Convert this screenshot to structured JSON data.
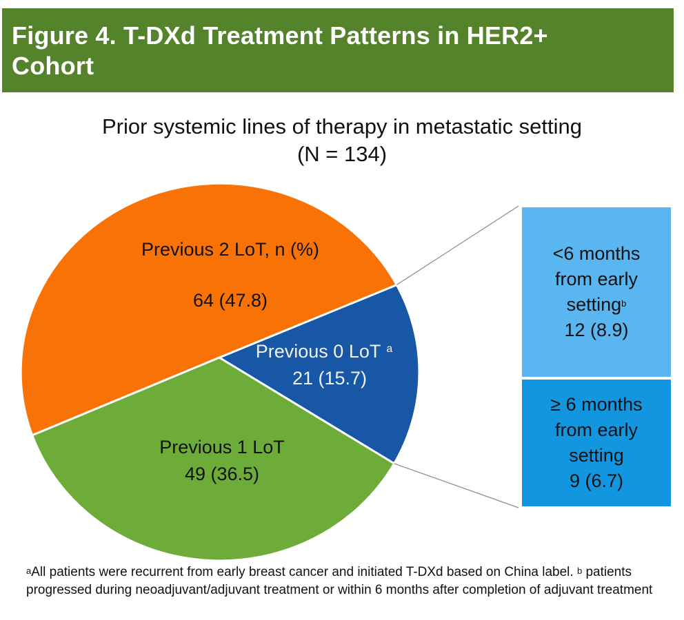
{
  "header": {
    "title_line1": "Figure 4. T-DXd Treatment Patterns in HER2+",
    "title_line2": "Cohort"
  },
  "colors": {
    "banner": "#55832b",
    "orange": "#f97206",
    "green": "#6eac3a",
    "blue": "#1757a6",
    "box_light": "#59b6f0",
    "box_dark": "#1296e0"
  },
  "chart_data": {
    "type": "pie",
    "title": "Prior systemic lines of therapy in metastatic setting",
    "subtitle": "(N = 134)",
    "slices": [
      {
        "name": "Previous 0 LoT",
        "label": "Previous 0 LoT",
        "sup": "a",
        "value_text": "21 (15.7)",
        "n": 21,
        "pct": 15.7
      },
      {
        "name": "Previous 1 LoT",
        "label": "Previous 1 LoT",
        "value_text": "49 (36.5)",
        "n": 49,
        "pct": 36.5
      },
      {
        "name": "Previous 2 LoT",
        "label": "Previous 2 LoT, n (%)",
        "value_text": "64 (47.8)",
        "n": 64,
        "pct": 47.8
      }
    ],
    "breakdown": [
      {
        "line1": "<6 months",
        "line2": "from early",
        "line3": "setting",
        "sup": "b",
        "value_text": "12 (8.9)",
        "n": 12,
        "pct": 8.9
      },
      {
        "line1": "≥ 6 months",
        "line2": "from early",
        "line3": "setting",
        "value_text": "9 (6.7)",
        "n": 9,
        "pct": 6.7
      }
    ]
  },
  "footnote": {
    "a_mark": "a",
    "a_text": "All patients were recurrent from early breast cancer and initiated T-DXd based on China label.",
    "b_mark": "b",
    "b_text": "patients progressed during neoadjuvant/adjuvant treatment or within 6 months after completion of adjuvant treatment"
  }
}
